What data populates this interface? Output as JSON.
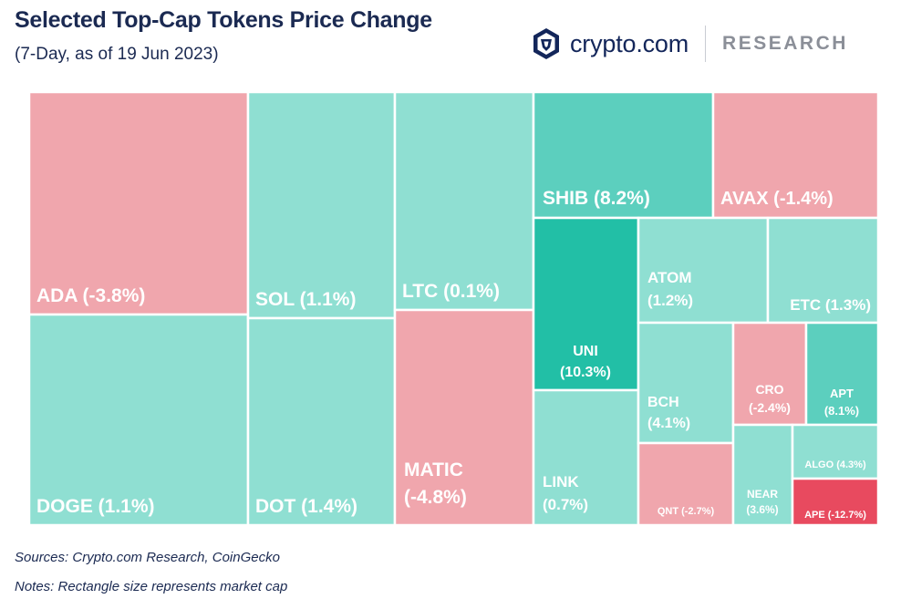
{
  "header": {
    "title": "Selected Top-Cap Tokens Price Change",
    "subtitle": "(7-Day, as of 19 Jun 2023)",
    "logo_text": "crypto.com",
    "logo_suffix": "RESEARCH"
  },
  "footer": {
    "sources": "Sources: Crypto.com Research, CoinGecko",
    "notes": "Notes: Rectangle size represents market cap"
  },
  "colors": {
    "negative": "#f0a6ad",
    "strong_negative": "#e84a5f",
    "slight_positive": "#8fdfd2",
    "positive": "#5ccfbe",
    "strong_positive": "#22bfa6",
    "text": "#ffffff"
  },
  "chart_data": {
    "type": "treemap",
    "title": "Selected Top-Cap Tokens Price Change",
    "subtitle": "(7-Day, as of 19 Jun 2023)",
    "size_measure": "market cap",
    "items": [
      {
        "token": "ADA",
        "change_pct": -3.8,
        "label": "ADA (-3.8%)"
      },
      {
        "token": "DOGE",
        "change_pct": 1.1,
        "label": "DOGE (1.1%)"
      },
      {
        "token": "SOL",
        "change_pct": 1.1,
        "label": "SOL (1.1%)"
      },
      {
        "token": "DOT",
        "change_pct": 1.4,
        "label": "DOT (1.4%)"
      },
      {
        "token": "LTC",
        "change_pct": 0.1,
        "label": "LTC (0.1%)"
      },
      {
        "token": "MATIC",
        "change_pct": -4.8,
        "label": "MATIC (-4.8%)"
      },
      {
        "token": "SHIB",
        "change_pct": 8.2,
        "label": "SHIB (8.2%)"
      },
      {
        "token": "AVAX",
        "change_pct": -1.4,
        "label": "AVAX (-1.4%)"
      },
      {
        "token": "UNI",
        "change_pct": 10.3,
        "label": "UNI (10.3%)"
      },
      {
        "token": "LINK",
        "change_pct": 0.7,
        "label": "LINK (0.7%)"
      },
      {
        "token": "ATOM",
        "change_pct": 1.2,
        "label": "ATOM (1.2%)"
      },
      {
        "token": "ETC",
        "change_pct": 1.3,
        "label": "ETC (1.3%)"
      },
      {
        "token": "BCH",
        "change_pct": 4.1,
        "label": "BCH (4.1%)"
      },
      {
        "token": "CRO",
        "change_pct": -2.4,
        "label": "CRO (-2.4%)"
      },
      {
        "token": "APT",
        "change_pct": 8.1,
        "label": "APT (8.1%)"
      },
      {
        "token": "QNT",
        "change_pct": -2.7,
        "label": "QNT (-2.7%)"
      },
      {
        "token": "NEAR",
        "change_pct": 3.6,
        "label": "NEAR (3.6%)"
      },
      {
        "token": "ALGO",
        "change_pct": 4.3,
        "label": "ALGO (4.3%)"
      },
      {
        "token": "APE",
        "change_pct": -12.7,
        "label": "APE (-12.7%)"
      }
    ]
  }
}
